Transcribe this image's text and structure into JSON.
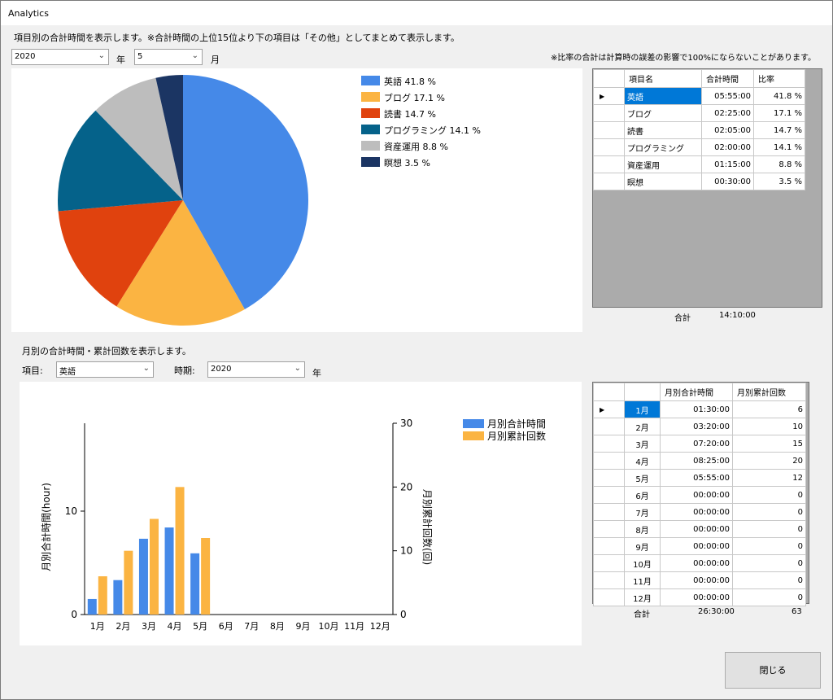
{
  "window": {
    "title": "Analytics"
  },
  "top": {
    "description": "項目別の合計時間を表示します。※合計時間の上位15位より下の項目は「その他」としてまとめて表示します。",
    "note": "※比率の合計は計算時の誤差の影響で100%にならないことがあります。",
    "year_value": "2020",
    "year_unit": "年",
    "month_value": "5",
    "month_unit": "月"
  },
  "pie": {
    "slices": [
      {
        "label": "英語 41.8 %",
        "value": 41.8,
        "color": "#4589e8"
      },
      {
        "label": "ブログ 17.1 %",
        "value": 17.1,
        "color": "#fbb442"
      },
      {
        "label": "読書 14.7 %",
        "value": 14.7,
        "color": "#e0420e"
      },
      {
        "label": "プログラミング 14.1 %",
        "value": 14.1,
        "color": "#05628a"
      },
      {
        "label": "資産運用 8.8 %",
        "value": 8.8,
        "color": "#bdbdbd"
      },
      {
        "label": "瞑想 3.5 %",
        "value": 3.5,
        "color": "#1b3563"
      }
    ]
  },
  "item_table": {
    "headers": [
      "項目名",
      "合計時間",
      "比率"
    ],
    "rows": [
      {
        "name": "英語",
        "time": "05:55:00",
        "ratio": "41.8 %"
      },
      {
        "name": "ブログ",
        "time": "02:25:00",
        "ratio": "17.1 %"
      },
      {
        "name": "読書",
        "time": "02:05:00",
        "ratio": "14.7 %"
      },
      {
        "name": "プログラミング",
        "time": "02:00:00",
        "ratio": "14.1 %"
      },
      {
        "name": "資産運用",
        "time": "01:15:00",
        "ratio": "8.8 %"
      },
      {
        "name": "瞑想",
        "time": "00:30:00",
        "ratio": "3.5 %"
      }
    ],
    "total_label": "合計",
    "total_value": "14:10:00"
  },
  "bottom": {
    "description": "月別の合計時間・累計回数を表示します。",
    "item_label": "項目:",
    "item_value": "英語",
    "period_label": "時期:",
    "period_value": "2020",
    "period_unit": "年"
  },
  "chart_data": {
    "type": "bar",
    "categories": [
      "1月",
      "2月",
      "3月",
      "4月",
      "5月",
      "6月",
      "7月",
      "8月",
      "9月",
      "10月",
      "11月",
      "12月"
    ],
    "series": [
      {
        "name": "月別合計時間",
        "axis": "left",
        "color": "#4589e8",
        "values": [
          1.5,
          3.33,
          7.33,
          8.42,
          5.92,
          0,
          0,
          0,
          0,
          0,
          0,
          0
        ]
      },
      {
        "name": "月別累計回数",
        "axis": "right",
        "color": "#fbb442",
        "values": [
          6,
          10,
          15,
          20,
          12,
          0,
          0,
          0,
          0,
          0,
          0,
          0
        ]
      }
    ],
    "ylabel": "月別合計時間(hour)",
    "y2label": "月別累計回数(回)",
    "ylim": [
      0,
      18.5
    ],
    "y2lim": [
      0,
      30
    ],
    "yticks": [
      "0",
      "10"
    ],
    "y2ticks": [
      "0",
      "10",
      "20",
      "30"
    ],
    "legend": "top-right"
  },
  "month_table": {
    "headers": [
      "月別合計時間",
      "月別累計回数"
    ],
    "rows": [
      {
        "month": "1月",
        "time": "01:30:00",
        "count": "6"
      },
      {
        "month": "2月",
        "time": "03:20:00",
        "count": "10"
      },
      {
        "month": "3月",
        "time": "07:20:00",
        "count": "15"
      },
      {
        "month": "4月",
        "time": "08:25:00",
        "count": "20"
      },
      {
        "month": "5月",
        "time": "05:55:00",
        "count": "12"
      },
      {
        "month": "6月",
        "time": "00:00:00",
        "count": "0"
      },
      {
        "month": "7月",
        "time": "00:00:00",
        "count": "0"
      },
      {
        "month": "8月",
        "time": "00:00:00",
        "count": "0"
      },
      {
        "month": "9月",
        "time": "00:00:00",
        "count": "0"
      },
      {
        "month": "10月",
        "time": "00:00:00",
        "count": "0"
      },
      {
        "month": "11月",
        "time": "00:00:00",
        "count": "0"
      },
      {
        "month": "12月",
        "time": "00:00:00",
        "count": "0"
      }
    ],
    "total_label": "合計",
    "total_time": "26:30:00",
    "total_count": "63"
  },
  "close_button": "閉じる"
}
